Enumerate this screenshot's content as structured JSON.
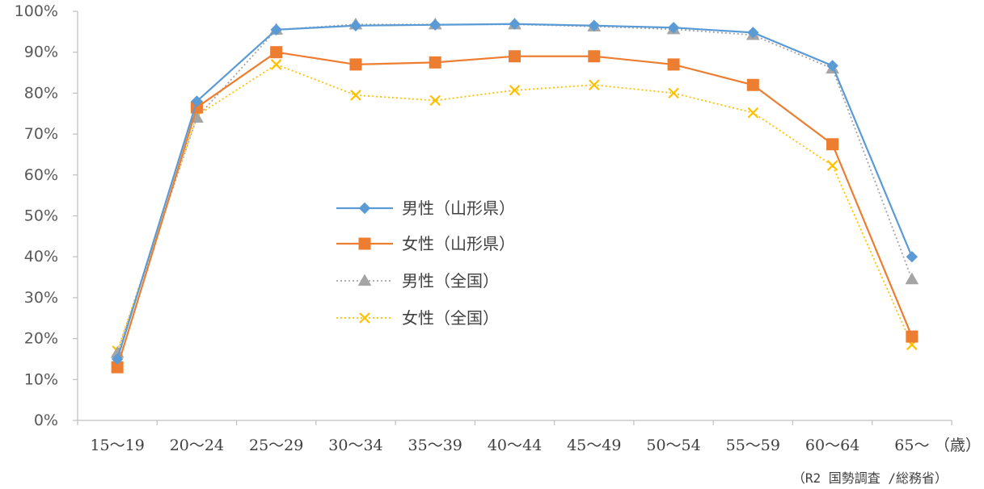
{
  "chart_data": {
    "type": "line",
    "categories": [
      "15～19",
      "20～24",
      "25～29",
      "30～34",
      "35～39",
      "40～44",
      "45～49",
      "50～54",
      "55～59",
      "60～64",
      "65～"
    ],
    "x_unit": "（歳）",
    "yticks": [
      "0%",
      "10%",
      "20%",
      "30%",
      "40%",
      "50%",
      "60%",
      "70%",
      "80%",
      "90%",
      "100%"
    ],
    "ylim": [
      0,
      100
    ],
    "grid": false,
    "legend_position": "center-left",
    "source": "（R2 国勢調査 /総務省）",
    "series": [
      {
        "name": "男性（山形県）",
        "values": [
          15.0,
          78.0,
          95.5,
          96.5,
          96.7,
          96.9,
          96.5,
          96.0,
          94.8,
          86.7,
          40.0
        ],
        "color": "#5B9BD5",
        "marker": "diamond",
        "line_style": "solid"
      },
      {
        "name": "女性（山形県）",
        "values": [
          13.0,
          76.5,
          90.0,
          87.0,
          87.5,
          89.0,
          89.0,
          87.0,
          82.0,
          67.5,
          20.5
        ],
        "color": "#ED7D31",
        "marker": "square",
        "line_style": "solid"
      },
      {
        "name": "男性（全国）",
        "values": [
          16.5,
          74.0,
          95.5,
          96.8,
          96.8,
          96.8,
          96.3,
          95.6,
          94.2,
          86.0,
          34.5
        ],
        "color": "#A5A5A5",
        "marker": "triangle",
        "line_style": "dotted"
      },
      {
        "name": "女性（全国）",
        "values": [
          17.0,
          74.5,
          87.0,
          79.5,
          78.2,
          80.7,
          82.0,
          80.0,
          75.2,
          62.3,
          18.5
        ],
        "color": "#FFC000",
        "marker": "x",
        "line_style": "dotted"
      }
    ]
  }
}
